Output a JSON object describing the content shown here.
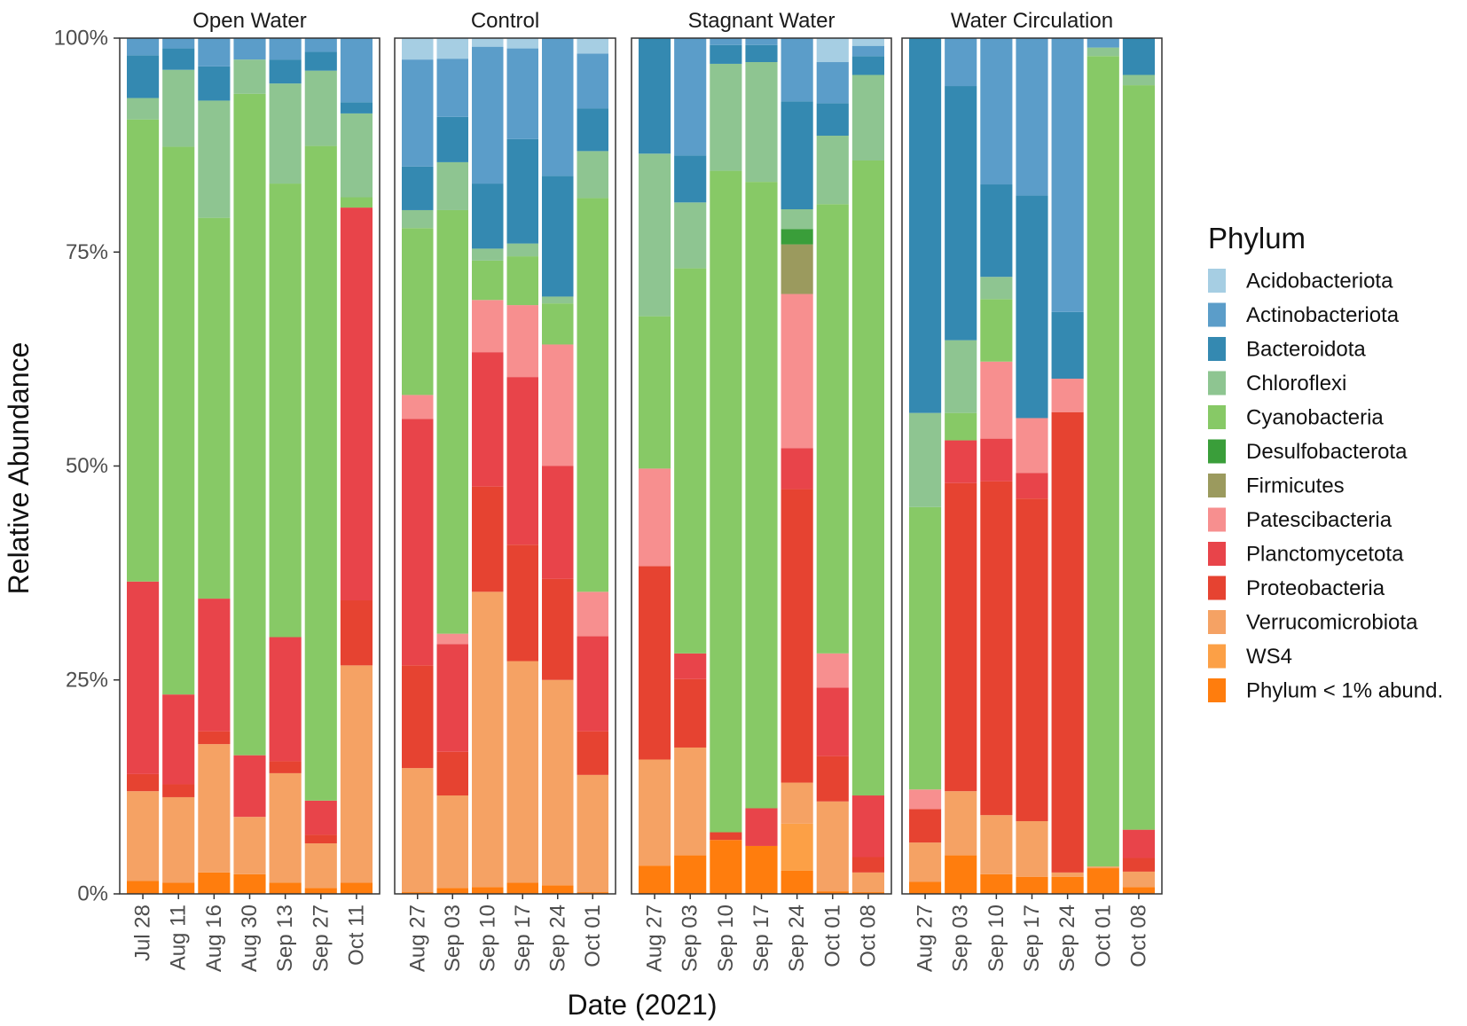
{
  "chart_data": {
    "type": "stacked-bar-faceted",
    "xlabel": "Date (2021)",
    "ylabel": "Relative Abundance",
    "ylim": [
      0,
      100
    ],
    "y_ticks": [
      "0%",
      "25%",
      "50%",
      "75%",
      "100%"
    ],
    "y_tick_values": [
      0,
      25,
      50,
      75,
      100
    ],
    "legend_title": "Phylum",
    "legend_position": "right",
    "phyla": [
      {
        "name": "Acidobacteriota",
        "color": "#a6cee3"
      },
      {
        "name": "Actinobacteriota",
        "color": "#5b9dc9"
      },
      {
        "name": "Bacteroidota",
        "color": "#3489b1"
      },
      {
        "name": "Chloroflexi",
        "color": "#8ec591"
      },
      {
        "name": "Cyanobacteria",
        "color": "#87c966"
      },
      {
        "name": "Desulfobacterota",
        "color": "#3a9e3a"
      },
      {
        "name": "Firmicutes",
        "color": "#9b9a5e"
      },
      {
        "name": "Patescibacteria",
        "color": "#f78f8f"
      },
      {
        "name": "Planctomycetota",
        "color": "#e8444a"
      },
      {
        "name": "Proteobacteria",
        "color": "#e64331"
      },
      {
        "name": "Verrucomicrobiota",
        "color": "#f5a264"
      },
      {
        "name": "WS4",
        "color": "#fca046"
      },
      {
        "name": "Phylum < 1% abund.",
        "color": "#ff7d0d"
      }
    ],
    "stack_order_bottom_to_top": [
      "Phylum < 1% abund.",
      "WS4",
      "Verrucomicrobiota",
      "Proteobacteria",
      "Planctomycetota",
      "Patescibacteria",
      "Firmicutes",
      "Desulfobacterota",
      "Cyanobacteria",
      "Chloroflexi",
      "Bacteroidota",
      "Actinobacteriota",
      "Acidobacteriota"
    ],
    "facets": [
      {
        "name": "Open Water",
        "bars": [
          {
            "date": "Jul 28",
            "Phylum < 1% abund.": 1.5,
            "Verrucomicrobiota": 10.5,
            "Proteobacteria": 2,
            "Planctomycetota": 22.5,
            "Cyanobacteria": 54,
            "Chloroflexi": 2.5,
            "Bacteroidota": 5,
            "Actinobacteriota": 2
          },
          {
            "date": "Aug 11",
            "Phylum < 1% abund.": 1.3,
            "Verrucomicrobiota": 10,
            "Proteobacteria": 1.5,
            "Planctomycetota": 10.5,
            "Cyanobacteria": 64,
            "Chloroflexi": 9,
            "Bacteroidota": 2.5,
            "Actinobacteriota": 1.2
          },
          {
            "date": "Aug 16",
            "Phylum < 1% abund.": 2.5,
            "Verrucomicrobiota": 15,
            "Proteobacteria": 1.5,
            "Planctomycetota": 15.5,
            "Cyanobacteria": 44.5,
            "Chloroflexi": 13.7,
            "Bacteroidota": 4,
            "Actinobacteriota": 3.3
          },
          {
            "date": "Aug 30",
            "Phylum < 1% abund.": 2.3,
            "Verrucomicrobiota": 6.7,
            "Proteobacteria": 0,
            "Planctomycetota": 7.2,
            "Cyanobacteria": 77.3,
            "Chloroflexi": 4,
            "Bacteroidota": 0,
            "Actinobacteriota": 2.5
          },
          {
            "date": "Sep 13",
            "Phylum < 1% abund.": 1.3,
            "Verrucomicrobiota": 12.8,
            "Proteobacteria": 1.4,
            "Planctomycetota": 14.5,
            "Cyanobacteria": 53,
            "Chloroflexi": 11.7,
            "Bacteroidota": 2.8,
            "Actinobacteriota": 2.5
          },
          {
            "date": "Sep 27",
            "Phylum < 1% abund.": 0.7,
            "Verrucomicrobiota": 5.2,
            "Proteobacteria": 1,
            "Planctomycetota": 4,
            "Cyanobacteria": 76.5,
            "Chloroflexi": 8.8,
            "Bacteroidota": 2.2,
            "Actinobacteriota": 1.6
          },
          {
            "date": "Oct 11",
            "Phylum < 1% abund.": 1.3,
            "Verrucomicrobiota": 25.4,
            "Proteobacteria": 7.6,
            "Planctomycetota": 45.9,
            "Cyanobacteria": 1.2,
            "Chloroflexi": 9.8,
            "Bacteroidota": 1.3,
            "Actinobacteriota": 7.5
          }
        ]
      },
      {
        "name": "Control",
        "bars": [
          {
            "date": "Aug 27",
            "Phylum < 1% abund.": 0.2,
            "Verrucomicrobiota": 14.5,
            "Proteobacteria": 12,
            "Planctomycetota": 28.8,
            "Patescibacteria": 2.8,
            "Cyanobacteria": 19.5,
            "Chloroflexi": 2.1,
            "Bacteroidota": 5.1,
            "Actinobacteriota": 12.5,
            "Acidobacteriota": 2.5
          },
          {
            "date": "Sep 03",
            "Phylum < 1% abund.": 0.7,
            "Verrucomicrobiota": 10.8,
            "Proteobacteria": 5.1,
            "Planctomycetota": 12.6,
            "Patescibacteria": 1.2,
            "Cyanobacteria": 49.5,
            "Chloroflexi": 5.6,
            "Bacteroidota": 5.3,
            "Actinobacteriota": 6.8,
            "Acidobacteriota": 2.4
          },
          {
            "date": "Sep 10",
            "Phylum < 1% abund.": 0.8,
            "Verrucomicrobiota": 34.5,
            "Proteobacteria": 12.3,
            "Planctomycetota": 15.7,
            "Patescibacteria": 6.1,
            "Cyanobacteria": 4.6,
            "Chloroflexi": 1.4,
            "Bacteroidota": 7.6,
            "Actinobacteriota": 16,
            "Acidobacteriota": 1
          },
          {
            "date": "Sep 17",
            "Phylum < 1% abund.": 1.3,
            "Verrucomicrobiota": 25.9,
            "Proteobacteria": 13.6,
            "Planctomycetota": 19.6,
            "Patescibacteria": 8.4,
            "Cyanobacteria": 5.7,
            "Chloroflexi": 1.5,
            "Bacteroidota": 12.2,
            "Actinobacteriota": 10.6,
            "Acidobacteriota": 1.2
          },
          {
            "date": "Sep 24",
            "Phylum < 1% abund.": 1,
            "Verrucomicrobiota": 24,
            "Proteobacteria": 11.8,
            "Planctomycetota": 13.2,
            "Patescibacteria": 14.2,
            "Cyanobacteria": 4.8,
            "Chloroflexi": 0.8,
            "Bacteroidota": 14.1,
            "Actinobacteriota": 16.1
          },
          {
            "date": "Oct 01",
            "Phylum < 1% abund.": 0.2,
            "Verrucomicrobiota": 13.7,
            "Proteobacteria": 5.1,
            "Planctomycetota": 11.1,
            "Patescibacteria": 5.2,
            "Cyanobacteria": 46,
            "Chloroflexi": 5.5,
            "Bacteroidota": 5,
            "Actinobacteriota": 6.4,
            "Acidobacteriota": 1.8
          }
        ]
      },
      {
        "name": "Stagnant Water",
        "bars": [
          {
            "date": "Aug 27",
            "Phylum < 1% abund.": 3.3,
            "Verrucomicrobiota": 12.4,
            "Proteobacteria": 22.6,
            "Patescibacteria": 11.4,
            "Cyanobacteria": 17.8,
            "Chloroflexi": 19,
            "Bacteroidota": 13.5
          },
          {
            "date": "Sep 03",
            "Phylum < 1% abund.": 4.5,
            "Verrucomicrobiota": 12.6,
            "Proteobacteria": 8,
            "Planctomycetota": 3,
            "Cyanobacteria": 45,
            "Chloroflexi": 7.7,
            "Bacteroidota": 5.5,
            "Actinobacteriota": 13.7
          },
          {
            "date": "Sep 10",
            "Phylum < 1% abund.": 6.3,
            "Proteobacteria": 0.9,
            "Cyanobacteria": 77.3,
            "Chloroflexi": 12.5,
            "Bacteroidota": 2.2,
            "Actinobacteriota": 0.8
          },
          {
            "date": "Sep 17",
            "Phylum < 1% abund.": 5.6,
            "Planctomycetota": 4.4,
            "Cyanobacteria": 73.2,
            "Chloroflexi": 14,
            "Bacteroidota": 2,
            "Actinobacteriota": 0.8
          },
          {
            "date": "Sep 24",
            "Phylum < 1% abund.": 2.7,
            "WS4": 5.5,
            "Verrucomicrobiota": 4.8,
            "Proteobacteria": 34.3,
            "Planctomycetota": 4.8,
            "Patescibacteria": 18,
            "Firmicutes": 5.8,
            "Desulfobacterota": 1.8,
            "Chloroflexi": 2.3,
            "Bacteroidota": 12.6,
            "Actinobacteriota": 7.4
          },
          {
            "date": "Oct 01",
            "Phylum < 1% abund.": 0.3,
            "Verrucomicrobiota": 10.5,
            "Proteobacteria": 5.3,
            "Planctomycetota": 8,
            "Patescibacteria": 4,
            "Cyanobacteria": 52.5,
            "Chloroflexi": 8,
            "Bacteroidota": 3.8,
            "Actinobacteriota": 4.8,
            "Acidobacteriota": 2.8
          },
          {
            "date": "Oct 08",
            "Phylum < 1% abund.": 0.2,
            "Verrucomicrobiota": 2.3,
            "Proteobacteria": 1.8,
            "Planctomycetota": 7.2,
            "Cyanobacteria": 74.2,
            "Chloroflexi": 10,
            "Bacteroidota": 2.2,
            "Actinobacteriota": 1.2,
            "Acidobacteriota": 0.9
          }
        ]
      },
      {
        "name": "Water Circulation",
        "bars": [
          {
            "date": "Aug 27",
            "Phylum < 1% abund.": 1.4,
            "Verrucomicrobiota": 4.6,
            "Proteobacteria": 3.9,
            "Patescibacteria": 2.3,
            "Cyanobacteria": 33,
            "Chloroflexi": 11,
            "Bacteroidota": 43.8
          },
          {
            "date": "Sep 03",
            "Phylum < 1% abund.": 4.5,
            "Verrucomicrobiota": 7.5,
            "Proteobacteria": 36,
            "Planctomycetota": 5,
            "Cyanobacteria": 3.2,
            "Chloroflexi": 8.5,
            "Bacteroidota": 29.7,
            "Actinobacteriota": 5.6
          },
          {
            "date": "Sep 10",
            "Phylum < 1% abund.": 2.3,
            "Verrucomicrobiota": 6.9,
            "Proteobacteria": 39,
            "Planctomycetota": 5,
            "Patescibacteria": 9,
            "Cyanobacteria": 7.3,
            "Chloroflexi": 2.6,
            "Bacteroidota": 10.8,
            "Actinobacteriota": 17.1
          },
          {
            "date": "Sep 17",
            "Phylum < 1% abund.": 2,
            "Verrucomicrobiota": 6.5,
            "Proteobacteria": 37.7,
            "Planctomycetota": 3,
            "Patescibacteria": 6.4,
            "Bacteroidota": 26,
            "Actinobacteriota": 18.4
          },
          {
            "date": "Sep 24",
            "Phylum < 1% abund.": 2,
            "Verrucomicrobiota": 0.5,
            "Proteobacteria": 53.8,
            "Patescibacteria": 3.9,
            "Bacteroidota": 7.8,
            "Actinobacteriota": 32
          },
          {
            "date": "Oct 01",
            "Phylum < 1% abund.": 3,
            "Verrucomicrobiota": 0.2,
            "Cyanobacteria": 94.7,
            "Chloroflexi": 1,
            "Actinobacteriota": 1.1
          },
          {
            "date": "Oct 08",
            "Phylum < 1% abund.": 0.8,
            "Verrucomicrobiota": 1.8,
            "Proteobacteria": 1.6,
            "Planctomycetota": 3.3,
            "Cyanobacteria": 87,
            "Chloroflexi": 1.2,
            "Bacteroidota": 4.3
          }
        ]
      }
    ]
  }
}
